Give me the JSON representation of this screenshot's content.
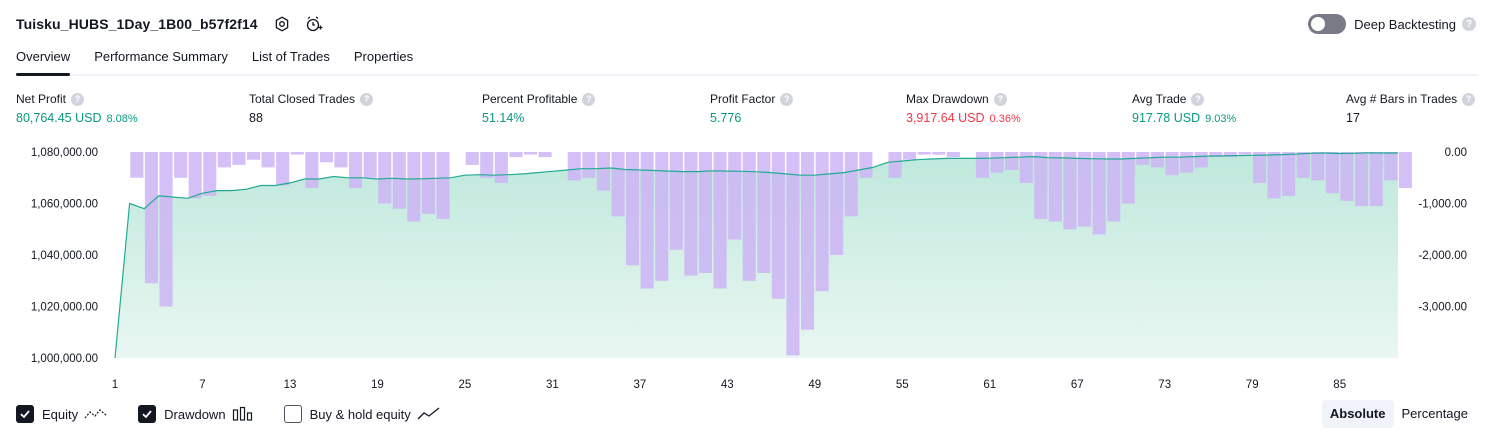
{
  "header": {
    "title": "Tuisku_HUBS_1Day_1B00_b57f2f14",
    "deep_backtesting_label": "Deep Backtesting",
    "help_glyph": "?"
  },
  "tabs": [
    {
      "label": "Overview",
      "active": true
    },
    {
      "label": "Performance Summary",
      "active": false
    },
    {
      "label": "List of Trades",
      "active": false
    },
    {
      "label": "Properties",
      "active": false
    }
  ],
  "metrics": {
    "net_profit": {
      "label": "Net Profit",
      "value": "80,764.45 USD",
      "pct": "8.08%"
    },
    "total_closed_trades": {
      "label": "Total Closed Trades",
      "value": "88"
    },
    "percent_profitable": {
      "label": "Percent Profitable",
      "value": "51.14%"
    },
    "profit_factor": {
      "label": "Profit Factor",
      "value": "5.776"
    },
    "max_drawdown": {
      "label": "Max Drawdown",
      "value": "3,917.64 USD",
      "pct": "0.36%"
    },
    "avg_trade": {
      "label": "Avg Trade",
      "value": "917.78 USD",
      "pct": "9.03%"
    },
    "avg_bars": {
      "label": "Avg # Bars in Trades",
      "value": "17"
    }
  },
  "legend": {
    "equity": {
      "label": "Equity",
      "checked": true
    },
    "drawdown": {
      "label": "Drawdown",
      "checked": true
    },
    "buy_hold": {
      "label": "Buy & hold equity",
      "checked": false
    }
  },
  "modes": {
    "absolute": "Absolute",
    "percentage": "Percentage",
    "active": "absolute"
  },
  "colors": {
    "equity_line": "#22ab94",
    "equity_fill_top": "#bfe8dc",
    "equity_fill_bottom": "#e9f7f2",
    "drawdown_bar": "#cdb4f5",
    "profit": "#089981",
    "loss": "#f23645"
  },
  "chart_data": {
    "type": "area",
    "x_ticks": [
      "1",
      "7",
      "13",
      "19",
      "25",
      "31",
      "37",
      "43",
      "49",
      "55",
      "61",
      "67",
      "73",
      "79",
      "85"
    ],
    "y_left_ticks": [
      "1,080,000.00",
      "1,060,000.00",
      "1,040,000.00",
      "1,020,000.00",
      "1,000,000.00"
    ],
    "y_right_ticks": [
      "0.00",
      "-1,000.00",
      "-2,000.00",
      "-3,000.00"
    ],
    "ylim_left": [
      1000000,
      1080000
    ],
    "ylim_right": [
      -4000,
      0
    ],
    "xlim": [
      1,
      89
    ],
    "series": [
      {
        "name": "Equity",
        "type": "area",
        "values": [
          1000000,
          1060000,
          1058000,
          1063000,
          1062500,
          1062000,
          1064000,
          1065000,
          1065000,
          1065500,
          1067000,
          1067000,
          1068000,
          1069500,
          1069500,
          1070500,
          1070000,
          1070000,
          1069500,
          1069800,
          1069500,
          1069600,
          1069800,
          1070000,
          1071000,
          1071200,
          1071000,
          1071200,
          1071500,
          1072000,
          1072500,
          1073000,
          1073500,
          1073500,
          1073800,
          1073200,
          1073000,
          1072800,
          1072600,
          1072400,
          1072400,
          1072700,
          1072600,
          1072500,
          1072300,
          1072000,
          1071500,
          1071000,
          1071000,
          1071500,
          1072000,
          1073000,
          1074000,
          1076000,
          1076500,
          1077000,
          1077300,
          1077500,
          1077500,
          1077500,
          1077600,
          1077800,
          1078000,
          1078200,
          1077800,
          1077700,
          1077500,
          1077400,
          1077300,
          1077300,
          1077500,
          1077800,
          1078000,
          1078000,
          1078200,
          1078400,
          1078500,
          1078600,
          1078700,
          1078800,
          1079000,
          1079200,
          1079500,
          1079600,
          1079400,
          1079500,
          1079700,
          1079600,
          1079600
        ]
      },
      {
        "name": "Drawdown",
        "type": "bar",
        "values": [
          0,
          -500,
          -2550,
          -3000,
          -500,
          -900,
          -850,
          -300,
          -250,
          -150,
          -300,
          -650,
          -50,
          -700,
          -200,
          -300,
          -700,
          -500,
          -1000,
          -1100,
          -1350,
          -1200,
          -1300,
          0,
          -250,
          -500,
          -600,
          -100,
          -50,
          -100,
          0,
          -550,
          -500,
          -750,
          -1250,
          -2200,
          -2650,
          -2500,
          -1900,
          -2400,
          -2350,
          -2650,
          -1700,
          -2500,
          -2350,
          -2850,
          -3950,
          -3450,
          -2700,
          -2000,
          -1250,
          -500,
          0,
          -500,
          -150,
          -50,
          -50,
          -100,
          0,
          -500,
          -400,
          -350,
          -600,
          -1300,
          -1350,
          -1500,
          -1450,
          -1600,
          -1350,
          -1000,
          -250,
          -300,
          -450,
          -400,
          -300,
          -100,
          -100,
          -50,
          -600,
          -900,
          -850,
          -500,
          -550,
          -800,
          -950,
          -1050,
          -1050,
          -550,
          -700
        ]
      }
    ]
  }
}
